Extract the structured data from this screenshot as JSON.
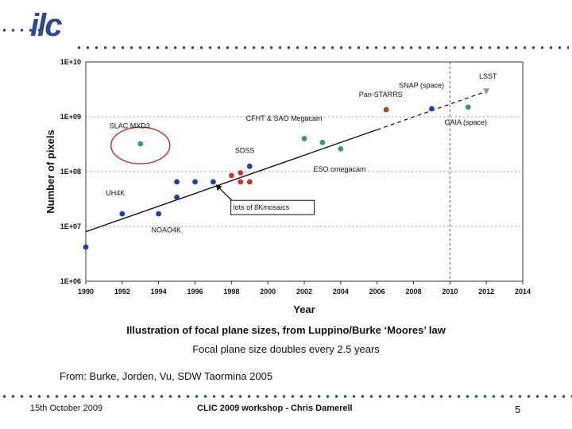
{
  "header": {
    "logo_text": "ilc"
  },
  "chart_data": {
    "type": "scatter",
    "xlabel": "Year",
    "ylabel": "Number of pixels",
    "xlim": [
      1990,
      2014
    ],
    "ylim": [
      1000000,
      10000000000
    ],
    "yscale": "log",
    "xticks": [
      "1990",
      "1992",
      "1994",
      "1996",
      "1998",
      "2000",
      "2002",
      "2004",
      "2006",
      "2008",
      "2010",
      "2012",
      "2014"
    ],
    "yticks": [
      "1E+06",
      "1E+07",
      "1E+08",
      "1E+09",
      "1E+10"
    ],
    "series": [
      {
        "name": "blue",
        "color": "#1f3fae",
        "marker": "circle",
        "points": [
          [
            1990,
            4200000
          ],
          [
            1992,
            17000000
          ],
          [
            1994,
            17000000
          ],
          [
            1995,
            34000000
          ],
          [
            1995,
            65000000
          ],
          [
            1996,
            65000000
          ],
          [
            1997,
            65000000
          ],
          [
            1999,
            125000000
          ],
          [
            2009,
            1400000000
          ]
        ]
      },
      {
        "name": "red",
        "color": "#c0392b",
        "marker": "circle",
        "points": [
          [
            1998,
            85000000
          ],
          [
            1998.5,
            95000000
          ],
          [
            1998.5,
            65000000
          ],
          [
            1999,
            65000000
          ],
          [
            2006.5,
            1350000000
          ]
        ]
      },
      {
        "name": "green",
        "color": "#3a9a6a",
        "marker": "circle",
        "points": [
          [
            1993,
            320000000
          ],
          [
            2002,
            400000000
          ],
          [
            2003,
            340000000
          ],
          [
            2004,
            260000000
          ],
          [
            2011,
            1500000000
          ]
        ]
      },
      {
        "name": "grey",
        "color": "#999999",
        "marker": "triangle",
        "points": [
          [
            2012,
            2900000000
          ]
        ]
      }
    ],
    "trend": {
      "x": [
        1990,
        2012
      ],
      "y": [
        8000000,
        2900000000
      ]
    },
    "annotations": [
      {
        "text": "LSST",
        "x": 2011.6,
        "y": 5000000000
      },
      {
        "text": "SNAP (space)",
        "x": 2007.2,
        "y": 3400000000
      },
      {
        "text": "Pan-STARRS",
        "x": 2005,
        "y": 2300000000
      },
      {
        "text": "CFHT & SAO Megacam",
        "x": 1998.8,
        "y": 850000000
      },
      {
        "text": "GAIA (space)",
        "x": 2009.7,
        "y": 720000000
      },
      {
        "text": "SLAC MXD3",
        "x": 1991.3,
        "y": 620000000
      },
      {
        "text": "SDSS",
        "x": 1998.2,
        "y": 220000000
      },
      {
        "text": "ESO omegacam",
        "x": 2002.5,
        "y": 100000000
      },
      {
        "text": "UH4K",
        "x": 1991.1,
        "y": 37000000
      },
      {
        "text": "NOAO4K",
        "x": 1993.6,
        "y": 7800000
      },
      {
        "text": "lots of 8Kmosaics",
        "x": 1998.1,
        "y": 20000000
      }
    ],
    "caption": "Illustration of focal plane sizes, from Luppino/Burke ‘Moores’ law",
    "subcaption": "Focal plane size doubles every 2.5 years"
  },
  "citation": "From: Burke, Jorden, Vu,  SDW Taormina 2005",
  "footer": {
    "date": "15th October 2009",
    "event": "CLIC 2009 workshop - Chris Damerell",
    "page": "5"
  }
}
